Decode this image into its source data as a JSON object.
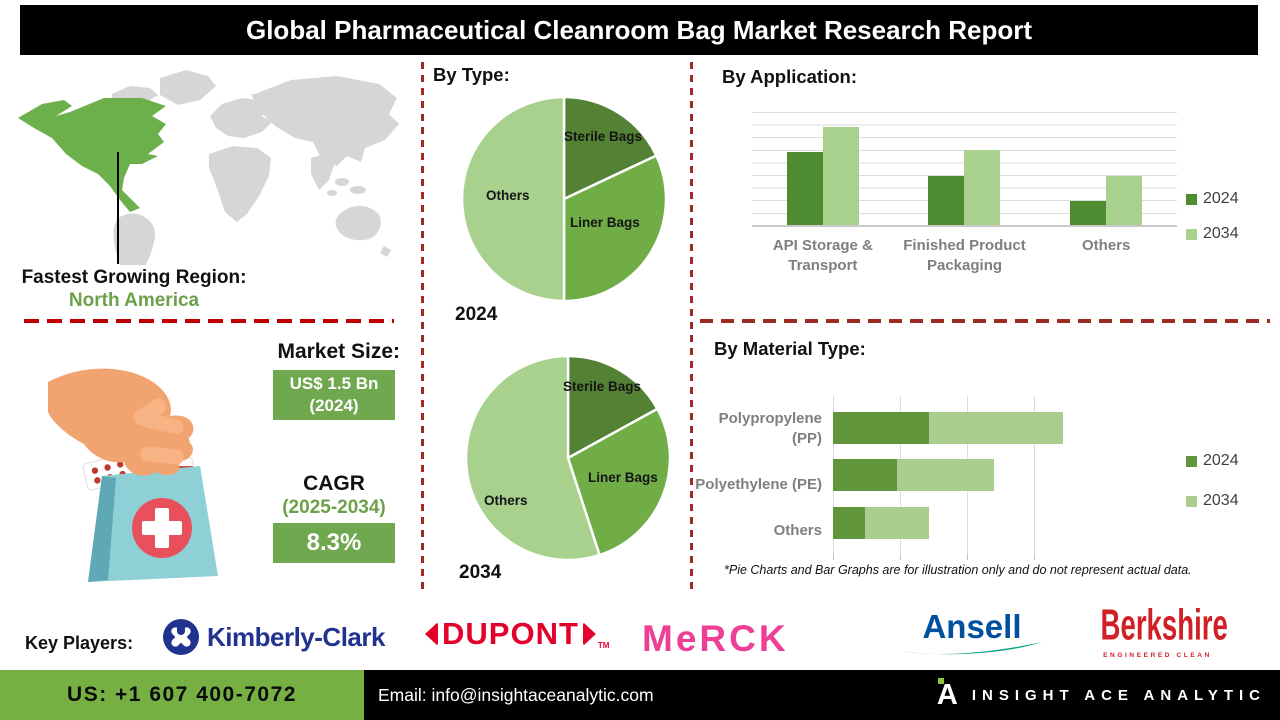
{
  "title": "Global Pharmaceutical Cleanroom Bag Market Research Report",
  "region": {
    "label": "Fastest Growing Region:",
    "value": "North America"
  },
  "market_size": {
    "label": "Market Size:",
    "value": "US$ 1.5 Bn",
    "year": "(2024)"
  },
  "cagr": {
    "label": "CAGR",
    "period": "(2025-2034)",
    "value": "8.3%"
  },
  "sections": {
    "by_type": "By Type:",
    "by_application": "By Application:",
    "by_material": "By Material Type:"
  },
  "disclaimer": "*Pie Charts and Bar Graphs are for illustration only and do not represent actual data.",
  "key_players": {
    "label": "Key Players:",
    "kimberly_clark": "Kimberly-Clark",
    "dupont": "DUPONT",
    "dupont_tm": "TM",
    "merck": "MeRCK",
    "ansell": "Ansell",
    "berkshire": "Berkshire",
    "berkshire_tagline": "ENGINEERED CLEAN"
  },
  "footer": {
    "phone": "US: +1 607 400-7072",
    "email": "Email: info@insightaceanalytic.com",
    "brand": "INSIGHT ACE ANALYTIC"
  },
  "colors": {
    "accent_green_dark": "#548235",
    "accent_green_mid": "#70AD47",
    "accent_green_light": "#A9D18E",
    "map_highlight": "#6CB04C",
    "map_land": "#D6D6D6",
    "divider_red": "#9C2B23",
    "divider_red_bright": "#C00000",
    "footer_green": "#76B043",
    "badge_green": "#6FA84F"
  },
  "chart_data": [
    {
      "type": "pie",
      "year": "2024",
      "title": "By Type: 2024",
      "labels": [
        "Sterile Bags",
        "Liner Bags",
        "Others"
      ],
      "values": [
        18,
        32,
        50
      ],
      "colors": [
        "#548235",
        "#70AD47",
        "#A9D18E"
      ]
    },
    {
      "type": "pie",
      "year": "2034",
      "title": "By Type: 2034",
      "labels": [
        "Sterile Bags",
        "Liner Bags",
        "Others"
      ],
      "values": [
        17,
        28,
        55
      ],
      "colors": [
        "#548235",
        "#70AD47",
        "#A9D18E"
      ]
    },
    {
      "type": "bar",
      "title": "By Application:",
      "categories": [
        "API Storage & Transport",
        "Finished Product Packaging",
        "Others"
      ],
      "series": [
        {
          "name": "2024",
          "color": "#4E8B31",
          "values": [
            65,
            43,
            21
          ]
        },
        {
          "name": "2034",
          "color": "#A9D18E",
          "values": [
            87,
            66,
            43
          ]
        }
      ],
      "ylim": [
        0,
        100
      ],
      "grid": true,
      "legend_position": "right"
    },
    {
      "type": "bar",
      "orientation": "horizontal",
      "stacked": true,
      "title": "By Material Type:",
      "categories": [
        "Polypropylene (PP)",
        "Polyethylene (PE)",
        "Others"
      ],
      "series": [
        {
          "name": "2024",
          "color": "#61953B",
          "values": [
            36,
            24,
            12
          ]
        },
        {
          "name": "2034",
          "color": "#A9CD8E",
          "values": [
            50,
            36,
            24
          ]
        }
      ],
      "xlim": [
        0,
        100
      ],
      "grid": true,
      "legend_position": "right"
    }
  ]
}
